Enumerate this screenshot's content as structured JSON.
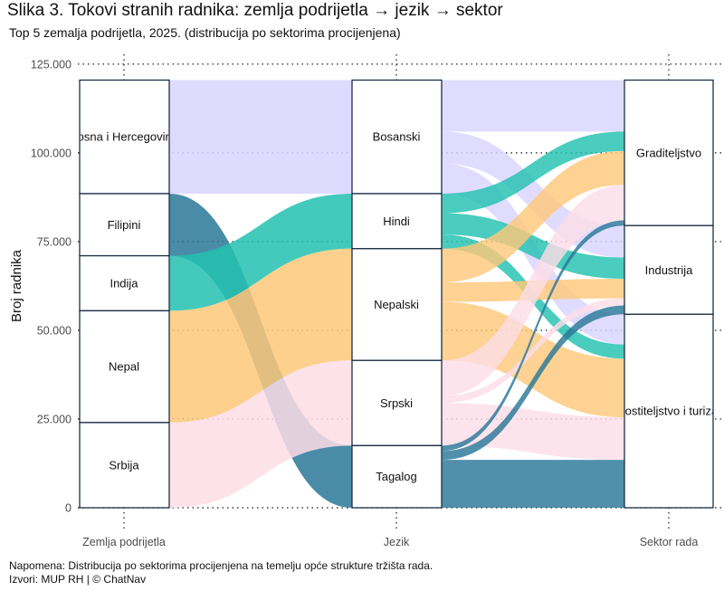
{
  "title": "Slika 3. Tokovi stranih radnika: zemlja podrijetla → jezik → sektor",
  "subtitle": "Top 5 zemalja podrijetla, 2025. (distribucija po sektorima procijenjena)",
  "note": "Napomena: Distribucija po sektorima procijenjena na temelju opće strukture tržišta rada.",
  "source": "Izvori: MUP RH  |  © ChatNav",
  "chart_data": {
    "type": "alluvial",
    "ylabel": "Broj radnika",
    "ylim": [
      0,
      125000
    ],
    "yticks": [
      0,
      25000,
      50000,
      75000,
      100000,
      125000
    ],
    "ytick_labels": [
      "0",
      "25.000",
      "50.000",
      "75.000",
      "100.000",
      "125.000"
    ],
    "axes": [
      "Zemlja podrijetla",
      "Jezik",
      "Sektor rada"
    ],
    "colors": {
      "Bosna i Hercegovina": "#d9d4ff",
      "Filipini": "#2a7898",
      "Indija": "#22c1b0",
      "Nepal": "#fdc87a",
      "Srbija": "#fddde6",
      "stroke": "#1b2f45",
      "grid": "#3a3a3a"
    },
    "countries": [
      {
        "name": "Bosna i Hercegovina",
        "language": "Bosanski",
        "total": 32000
      },
      {
        "name": "Filipini",
        "language": "Tagalog",
        "total": 17500
      },
      {
        "name": "Indija",
        "language": "Hindi",
        "total": 15500
      },
      {
        "name": "Nepal",
        "language": "Nepalski",
        "total": 31500
      },
      {
        "name": "Srbija",
        "language": "Srpski",
        "total": 24000
      }
    ],
    "axis1_order": [
      "Bosna i Hercegovina",
      "Filipini",
      "Indija",
      "Nepal",
      "Srbija"
    ],
    "axis2_order": [
      "Bosanski",
      "Hindi",
      "Nepalski",
      "Srpski",
      "Tagalog"
    ],
    "axis3_order": [
      "Graditeljstvo",
      "Industrija",
      "Ugostiteljstvo i turizam"
    ],
    "sector_flows": {
      "Bosna i Hercegovina": {
        "Graditeljstvo": 14500,
        "Industrija": 9000,
        "Ugostiteljstvo i turizam": 8500
      },
      "Filipini": {
        "Graditeljstvo": 1500,
        "Industrija": 2500,
        "Ugostiteljstvo i turizam": 13500
      },
      "Indija": {
        "Graditeljstvo": 5500,
        "Industrija": 6000,
        "Ugostiteljstvo i turizam": 4000
      },
      "Nepal": {
        "Graditeljstvo": 9500,
        "Industrija": 5500,
        "Ugostiteljstvo i turizam": 16500
      },
      "Srbija": {
        "Graditeljstvo": 10000,
        "Industrija": 2000,
        "Ugostiteljstvo i turizam": 12000
      }
    }
  }
}
